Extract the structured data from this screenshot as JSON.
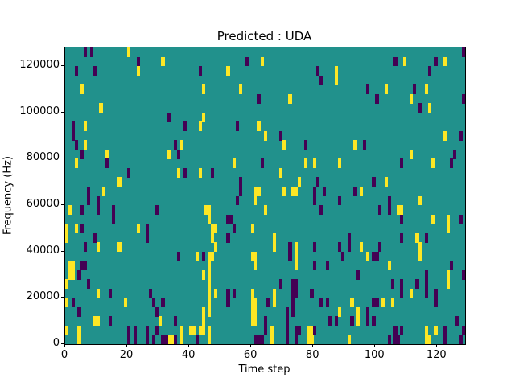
{
  "title": "Predicted : UDA",
  "axes": {
    "xlabel": "Time step",
    "ylabel": "Frequency (Hz)"
  },
  "chart_data": {
    "type": "heatmap",
    "title": "Predicted : UDA",
    "xlabel": "Time step",
    "ylabel": "Frequency (Hz)",
    "x_range": [
      0,
      129
    ],
    "y_range": [
      0,
      128000
    ],
    "x_ticks": [
      0,
      20,
      40,
      60,
      80,
      100,
      120
    ],
    "y_ticks": [
      0,
      20000,
      40000,
      60000,
      80000,
      100000,
      120000
    ],
    "n_time_steps": 129,
    "n_freq_bins": 32,
    "freq_bin_hz": 4000,
    "grid": false,
    "legend": "none",
    "background_value": 1,
    "value_colors": {
      "0": "#440154",
      "1": "#21918c",
      "2": "#fde725"
    },
    "cell_coord_format": "[time_step, freq_row_from_top]",
    "cells": {
      "yellow": [
        [
          20,
          0
        ],
        [
          31,
          1
        ],
        [
          63,
          1
        ],
        [
          109,
          1
        ],
        [
          122,
          1
        ],
        [
          23,
          2
        ],
        [
          52,
          2
        ],
        [
          87,
          2
        ],
        [
          87,
          3
        ],
        [
          5,
          4
        ],
        [
          44,
          4
        ],
        [
          56,
          4
        ],
        [
          103,
          4
        ],
        [
          116,
          4
        ],
        [
          72,
          5
        ],
        [
          111,
          5
        ],
        [
          11,
          6
        ],
        [
          117,
          6
        ],
        [
          44,
          7
        ],
        [
          6,
          8
        ],
        [
          43,
          8
        ],
        [
          62,
          8
        ],
        [
          64,
          9
        ],
        [
          122,
          9
        ],
        [
          6,
          10
        ],
        [
          37,
          10
        ],
        [
          70,
          10
        ],
        [
          93,
          10
        ],
        [
          13,
          11
        ],
        [
          33,
          11
        ],
        [
          111,
          11
        ],
        [
          3,
          12
        ],
        [
          54,
          12
        ],
        [
          77,
          12
        ],
        [
          80,
          12
        ],
        [
          88,
          12
        ],
        [
          118,
          12
        ],
        [
          36,
          13
        ],
        [
          43,
          13
        ],
        [
          69,
          13
        ],
        [
          17,
          14
        ],
        [
          75,
          14
        ],
        [
          103,
          14
        ],
        [
          12,
          15
        ],
        [
          61,
          15
        ],
        [
          62,
          15
        ],
        [
          70,
          15
        ],
        [
          73,
          15
        ],
        [
          74,
          15
        ],
        [
          95,
          15
        ],
        [
          61,
          16
        ],
        [
          114,
          16
        ],
        [
          1,
          17
        ],
        [
          45,
          17
        ],
        [
          46,
          17
        ],
        [
          64,
          17
        ],
        [
          107,
          17
        ],
        [
          108,
          17
        ],
        [
          46,
          18
        ],
        [
          118,
          18
        ],
        [
          123,
          18
        ],
        [
          0,
          19
        ],
        [
          3,
          19
        ],
        [
          23,
          19
        ],
        [
          47,
          19
        ],
        [
          48,
          19
        ],
        [
          60,
          19
        ],
        [
          123,
          19
        ],
        [
          0,
          20
        ],
        [
          47,
          20
        ],
        [
          67,
          20
        ],
        [
          113,
          20
        ],
        [
          10,
          21
        ],
        [
          17,
          21
        ],
        [
          48,
          21
        ],
        [
          67,
          21
        ],
        [
          74,
          21
        ],
        [
          95,
          21
        ],
        [
          114,
          21
        ],
        [
          42,
          22
        ],
        [
          46,
          22
        ],
        [
          47,
          22
        ],
        [
          60,
          22
        ],
        [
          61,
          22
        ],
        [
          74,
          22
        ],
        [
          97,
          22
        ],
        [
          114,
          22
        ],
        [
          1,
          23
        ],
        [
          2,
          23
        ],
        [
          46,
          23
        ],
        [
          61,
          23
        ],
        [
          74,
          23
        ],
        [
          104,
          23
        ],
        [
          1,
          24
        ],
        [
          2,
          24
        ],
        [
          44,
          24
        ],
        [
          46,
          24
        ],
        [
          123,
          24
        ],
        [
          0,
          25
        ],
        [
          46,
          25
        ],
        [
          123,
          25
        ],
        [
          10,
          26
        ],
        [
          46,
          26
        ],
        [
          48,
          26
        ],
        [
          60,
          26
        ],
        [
          67,
          26
        ],
        [
          111,
          26
        ],
        [
          0,
          27
        ],
        [
          19,
          27
        ],
        [
          46,
          27
        ],
        [
          60,
          27
        ],
        [
          61,
          27
        ],
        [
          67,
          27
        ],
        [
          92,
          27
        ],
        [
          102,
          27
        ],
        [
          105,
          27
        ],
        [
          44,
          28
        ],
        [
          46,
          28
        ],
        [
          60,
          28
        ],
        [
          61,
          28
        ],
        [
          88,
          28
        ],
        [
          94,
          28
        ],
        [
          9,
          29
        ],
        [
          10,
          29
        ],
        [
          30,
          29
        ],
        [
          44,
          29
        ],
        [
          60,
          29
        ],
        [
          61,
          29
        ],
        [
          94,
          29
        ],
        [
          0,
          30
        ],
        [
          4,
          30
        ],
        [
          37,
          30
        ],
        [
          40,
          30
        ],
        [
          41,
          30
        ],
        [
          43,
          30
        ],
        [
          44,
          30
        ],
        [
          46,
          30
        ],
        [
          66,
          30
        ],
        [
          78,
          30
        ],
        [
          79,
          30
        ],
        [
          116,
          30
        ],
        [
          119,
          30
        ],
        [
          4,
          31
        ],
        [
          33,
          31
        ],
        [
          34,
          31
        ],
        [
          37,
          31
        ],
        [
          46,
          31
        ],
        [
          66,
          31
        ],
        [
          78,
          31
        ],
        [
          79,
          31
        ],
        [
          91,
          31
        ],
        [
          116,
          31
        ],
        [
          117,
          31
        ]
      ],
      "purple": [
        [
          6,
          0
        ],
        [
          8,
          0
        ],
        [
          128,
          0
        ],
        [
          23,
          1
        ],
        [
          58,
          1
        ],
        [
          106,
          1
        ],
        [
          119,
          1
        ],
        [
          3,
          2
        ],
        [
          9,
          2
        ],
        [
          43,
          2
        ],
        [
          81,
          2
        ],
        [
          117,
          2
        ],
        [
          82,
          3
        ],
        [
          97,
          4
        ],
        [
          112,
          4
        ],
        [
          62,
          5
        ],
        [
          100,
          5
        ],
        [
          128,
          5
        ],
        [
          114,
          6
        ],
        [
          33,
          7
        ],
        [
          2,
          8
        ],
        [
          38,
          8
        ],
        [
          55,
          8
        ],
        [
          2,
          9
        ],
        [
          69,
          9
        ],
        [
          127,
          9
        ],
        [
          3,
          10
        ],
        [
          35,
          10
        ],
        [
          77,
          10
        ],
        [
          96,
          10
        ],
        [
          5,
          11
        ],
        [
          36,
          11
        ],
        [
          125,
          11
        ],
        [
          13,
          12
        ],
        [
          63,
          12
        ],
        [
          108,
          12
        ],
        [
          124,
          12
        ],
        [
          20,
          13
        ],
        [
          38,
          13
        ],
        [
          47,
          13
        ],
        [
          56,
          14
        ],
        [
          81,
          14
        ],
        [
          99,
          14
        ],
        [
          7,
          15
        ],
        [
          56,
          15
        ],
        [
          80,
          15
        ],
        [
          83,
          15
        ],
        [
          93,
          15
        ],
        [
          7,
          16
        ],
        [
          10,
          16
        ],
        [
          55,
          16
        ],
        [
          80,
          16
        ],
        [
          88,
          16
        ],
        [
          104,
          16
        ],
        [
          5,
          17
        ],
        [
          10,
          17
        ],
        [
          15,
          17
        ],
        [
          29,
          17
        ],
        [
          82,
          17
        ],
        [
          101,
          17
        ],
        [
          104,
          17
        ],
        [
          15,
          18
        ],
        [
          52,
          18
        ],
        [
          53,
          18
        ],
        [
          108,
          18
        ],
        [
          127,
          18
        ],
        [
          5,
          19
        ],
        [
          26,
          19
        ],
        [
          54,
          19
        ],
        [
          9,
          20
        ],
        [
          26,
          20
        ],
        [
          52,
          20
        ],
        [
          91,
          20
        ],
        [
          108,
          20
        ],
        [
          116,
          20
        ],
        [
          6,
          21
        ],
        [
          72,
          21
        ],
        [
          80,
          21
        ],
        [
          88,
          21
        ],
        [
          91,
          21
        ],
        [
          101,
          21
        ],
        [
          36,
          22
        ],
        [
          44,
          22
        ],
        [
          72,
          22
        ],
        [
          89,
          22
        ],
        [
          99,
          22
        ],
        [
          100,
          22
        ],
        [
          5,
          23
        ],
        [
          6,
          23
        ],
        [
          80,
          23
        ],
        [
          84,
          23
        ],
        [
          124,
          23
        ],
        [
          4,
          24
        ],
        [
          94,
          24
        ],
        [
          116,
          24
        ],
        [
          128,
          24
        ],
        [
          7,
          25
        ],
        [
          69,
          25
        ],
        [
          73,
          25
        ],
        [
          74,
          25
        ],
        [
          105,
          25
        ],
        [
          108,
          25
        ],
        [
          113,
          25
        ],
        [
          116,
          25
        ],
        [
          14,
          26
        ],
        [
          27,
          26
        ],
        [
          52,
          26
        ],
        [
          54,
          26
        ],
        [
          73,
          26
        ],
        [
          74,
          26
        ],
        [
          79,
          26
        ],
        [
          108,
          26
        ],
        [
          116,
          26
        ],
        [
          119,
          26
        ],
        [
          2,
          27
        ],
        [
          28,
          27
        ],
        [
          31,
          27
        ],
        [
          52,
          27
        ],
        [
          65,
          27
        ],
        [
          73,
          27
        ],
        [
          82,
          27
        ],
        [
          84,
          27
        ],
        [
          99,
          27
        ],
        [
          100,
          27
        ],
        [
          119,
          27
        ],
        [
          4,
          28
        ],
        [
          29,
          28
        ],
        [
          71,
          28
        ],
        [
          73,
          28
        ],
        [
          97,
          28
        ],
        [
          14,
          29
        ],
        [
          35,
          29
        ],
        [
          64,
          29
        ],
        [
          71,
          29
        ],
        [
          85,
          29
        ],
        [
          87,
          29
        ],
        [
          92,
          29
        ],
        [
          97,
          29
        ],
        [
          99,
          29
        ],
        [
          126,
          29
        ],
        [
          20,
          30
        ],
        [
          22,
          30
        ],
        [
          26,
          30
        ],
        [
          29,
          30
        ],
        [
          64,
          30
        ],
        [
          71,
          30
        ],
        [
          74,
          30
        ],
        [
          75,
          30
        ],
        [
          80,
          30
        ],
        [
          106,
          30
        ],
        [
          108,
          30
        ],
        [
          122,
          30
        ],
        [
          128,
          30
        ],
        [
          20,
          31
        ],
        [
          22,
          31
        ],
        [
          26,
          31
        ],
        [
          28,
          31
        ],
        [
          31,
          31
        ],
        [
          32,
          31
        ],
        [
          35,
          31
        ],
        [
          42,
          31
        ],
        [
          61,
          31
        ],
        [
          62,
          31
        ],
        [
          63,
          31
        ],
        [
          71,
          31
        ],
        [
          74,
          31
        ],
        [
          104,
          31
        ],
        [
          106,
          31
        ],
        [
          107,
          31
        ],
        [
          122,
          31
        ],
        [
          127,
          31
        ]
      ]
    }
  }
}
